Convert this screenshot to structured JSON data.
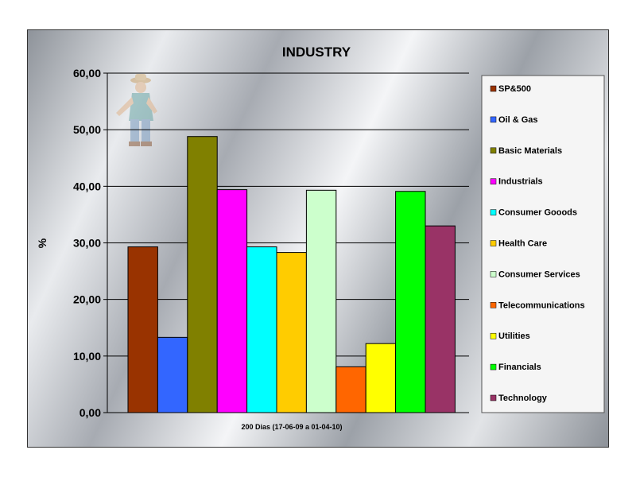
{
  "chart_data": {
    "type": "bar",
    "title": "INDUSTRY",
    "xlabel": "200 Dias (17-06-09 a 01-04-10)",
    "ylabel": "%",
    "ylim": [
      0,
      60
    ],
    "yticks": [
      "0,00",
      "10,00",
      "20,00",
      "30,00",
      "40,00",
      "50,00",
      "60,00"
    ],
    "grid": true,
    "legend_position": "right",
    "series": [
      {
        "name": "SP&500",
        "value": 29.3,
        "color": "#993300"
      },
      {
        "name": "Oil & Gas",
        "value": 13.3,
        "color": "#3366ff"
      },
      {
        "name": "Basic Materials",
        "value": 48.8,
        "color": "#808000"
      },
      {
        "name": "Industrials",
        "value": 39.4,
        "color": "#ff00ff"
      },
      {
        "name": "Consumer Gooods",
        "value": 29.3,
        "color": "#00ffff"
      },
      {
        "name": "Health Care",
        "value": 28.3,
        "color": "#ffcc00"
      },
      {
        "name": "Consumer Services",
        "value": 39.3,
        "color": "#ccffcc"
      },
      {
        "name": "Telecommunications",
        "value": 8.1,
        "color": "#ff6600"
      },
      {
        "name": "Utilities",
        "value": 12.2,
        "color": "#ffff00"
      },
      {
        "name": "Financials",
        "value": 39.1,
        "color": "#00ff00"
      },
      {
        "name": "Technology",
        "value": 33.0,
        "color": "#993366"
      }
    ]
  }
}
